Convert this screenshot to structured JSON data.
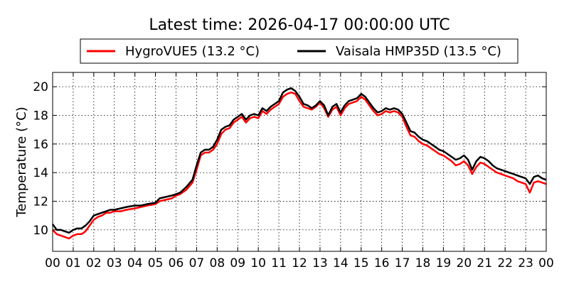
{
  "chart_data": {
    "type": "line",
    "title": "Latest time: 2026-04-17 00:00:00 UTC",
    "xlabel": "",
    "ylabel": "Temperature (°C)",
    "xlim": [
      0,
      24
    ],
    "ylim": [
      8.5,
      21
    ],
    "grid": true,
    "legend_position": "top",
    "x_tick_values": [
      0,
      1,
      2,
      3,
      4,
      5,
      6,
      7,
      8,
      9,
      10,
      11,
      12,
      13,
      14,
      15,
      16,
      17,
      18,
      19,
      20,
      21,
      22,
      23,
      24
    ],
    "x_tick_labels": [
      "00",
      "01",
      "02",
      "03",
      "04",
      "05",
      "06",
      "07",
      "08",
      "09",
      "10",
      "11",
      "12",
      "13",
      "14",
      "15",
      "16",
      "17",
      "18",
      "19",
      "20",
      "21",
      "22",
      "23",
      "00"
    ],
    "y_ticks": [
      10,
      12,
      14,
      16,
      18,
      20
    ],
    "series": [
      {
        "name": "HygroVUE5 (13.2 °C)",
        "color": "#ff0000",
        "points": [
          [
            0.0,
            10.0
          ],
          [
            0.2,
            9.7
          ],
          [
            0.4,
            9.6
          ],
          [
            0.6,
            9.5
          ],
          [
            0.8,
            9.4
          ],
          [
            1.0,
            9.6
          ],
          [
            1.2,
            9.7
          ],
          [
            1.4,
            9.7
          ],
          [
            1.6,
            9.9
          ],
          [
            1.8,
            10.3
          ],
          [
            2.0,
            10.7
          ],
          [
            2.2,
            10.9
          ],
          [
            2.4,
            11.0
          ],
          [
            2.6,
            11.2
          ],
          [
            2.8,
            11.2
          ],
          [
            3.0,
            11.3
          ],
          [
            3.3,
            11.3
          ],
          [
            3.6,
            11.4
          ],
          [
            4.0,
            11.5
          ],
          [
            4.3,
            11.6
          ],
          [
            4.6,
            11.7
          ],
          [
            5.0,
            11.8
          ],
          [
            5.2,
            12.0
          ],
          [
            5.5,
            12.1
          ],
          [
            5.8,
            12.2
          ],
          [
            6.0,
            12.4
          ],
          [
            6.2,
            12.5
          ],
          [
            6.5,
            12.8
          ],
          [
            6.8,
            13.3
          ],
          [
            7.0,
            14.2
          ],
          [
            7.2,
            15.2
          ],
          [
            7.4,
            15.4
          ],
          [
            7.6,
            15.4
          ],
          [
            7.8,
            15.6
          ],
          [
            8.0,
            16.0
          ],
          [
            8.2,
            16.7
          ],
          [
            8.4,
            17.0
          ],
          [
            8.6,
            17.1
          ],
          [
            8.8,
            17.5
          ],
          [
            9.0,
            17.7
          ],
          [
            9.2,
            17.9
          ],
          [
            9.4,
            17.5
          ],
          [
            9.6,
            17.8
          ],
          [
            9.8,
            17.9
          ],
          [
            10.0,
            17.8
          ],
          [
            10.2,
            18.3
          ],
          [
            10.4,
            18.1
          ],
          [
            10.6,
            18.4
          ],
          [
            10.8,
            18.6
          ],
          [
            11.0,
            18.8
          ],
          [
            11.2,
            19.3
          ],
          [
            11.4,
            19.5
          ],
          [
            11.6,
            19.6
          ],
          [
            11.8,
            19.5
          ],
          [
            12.0,
            19.0
          ],
          [
            12.2,
            18.6
          ],
          [
            12.4,
            18.5
          ],
          [
            12.6,
            18.4
          ],
          [
            12.8,
            18.6
          ],
          [
            13.0,
            18.9
          ],
          [
            13.2,
            18.5
          ],
          [
            13.4,
            17.9
          ],
          [
            13.6,
            18.4
          ],
          [
            13.8,
            18.6
          ],
          [
            14.0,
            18.0
          ],
          [
            14.2,
            18.5
          ],
          [
            14.4,
            18.8
          ],
          [
            14.6,
            18.9
          ],
          [
            14.8,
            19.0
          ],
          [
            15.0,
            19.3
          ],
          [
            15.2,
            19.1
          ],
          [
            15.4,
            18.7
          ],
          [
            15.6,
            18.3
          ],
          [
            15.8,
            18.0
          ],
          [
            16.0,
            18.1
          ],
          [
            16.2,
            18.3
          ],
          [
            16.4,
            18.2
          ],
          [
            16.6,
            18.3
          ],
          [
            16.8,
            18.2
          ],
          [
            17.0,
            17.9
          ],
          [
            17.2,
            17.2
          ],
          [
            17.4,
            16.6
          ],
          [
            17.6,
            16.5
          ],
          [
            17.8,
            16.2
          ],
          [
            18.0,
            16.0
          ],
          [
            18.2,
            15.9
          ],
          [
            18.4,
            15.7
          ],
          [
            18.6,
            15.5
          ],
          [
            18.8,
            15.3
          ],
          [
            19.0,
            15.2
          ],
          [
            19.2,
            15.0
          ],
          [
            19.4,
            14.8
          ],
          [
            19.6,
            14.5
          ],
          [
            19.8,
            14.6
          ],
          [
            20.0,
            14.8
          ],
          [
            20.2,
            14.5
          ],
          [
            20.4,
            13.9
          ],
          [
            20.6,
            14.4
          ],
          [
            20.8,
            14.7
          ],
          [
            21.0,
            14.6
          ],
          [
            21.2,
            14.4
          ],
          [
            21.4,
            14.2
          ],
          [
            21.6,
            14.0
          ],
          [
            21.8,
            13.9
          ],
          [
            22.0,
            13.8
          ],
          [
            22.2,
            13.7
          ],
          [
            22.4,
            13.6
          ],
          [
            22.6,
            13.4
          ],
          [
            22.8,
            13.3
          ],
          [
            23.0,
            13.2
          ],
          [
            23.2,
            12.6
          ],
          [
            23.4,
            13.3
          ],
          [
            23.6,
            13.4
          ],
          [
            23.8,
            13.3
          ],
          [
            24.0,
            13.2
          ]
        ]
      },
      {
        "name": "Vaisala HMP35D (13.5 °C)",
        "color": "#000000",
        "points": [
          [
            0.0,
            10.4
          ],
          [
            0.2,
            10.0
          ],
          [
            0.4,
            10.0
          ],
          [
            0.6,
            9.9
          ],
          [
            0.8,
            9.8
          ],
          [
            1.0,
            10.0
          ],
          [
            1.2,
            10.1
          ],
          [
            1.4,
            10.1
          ],
          [
            1.6,
            10.3
          ],
          [
            1.8,
            10.6
          ],
          [
            2.0,
            11.0
          ],
          [
            2.2,
            11.1
          ],
          [
            2.4,
            11.2
          ],
          [
            2.6,
            11.3
          ],
          [
            2.8,
            11.4
          ],
          [
            3.0,
            11.4
          ],
          [
            3.3,
            11.5
          ],
          [
            3.6,
            11.6
          ],
          [
            4.0,
            11.7
          ],
          [
            4.3,
            11.7
          ],
          [
            4.6,
            11.8
          ],
          [
            5.0,
            11.9
          ],
          [
            5.2,
            12.2
          ],
          [
            5.5,
            12.3
          ],
          [
            5.8,
            12.4
          ],
          [
            6.0,
            12.5
          ],
          [
            6.2,
            12.6
          ],
          [
            6.5,
            13.0
          ],
          [
            6.8,
            13.5
          ],
          [
            7.0,
            14.5
          ],
          [
            7.2,
            15.4
          ],
          [
            7.4,
            15.6
          ],
          [
            7.6,
            15.6
          ],
          [
            7.8,
            15.8
          ],
          [
            8.0,
            16.3
          ],
          [
            8.2,
            17.0
          ],
          [
            8.4,
            17.2
          ],
          [
            8.6,
            17.3
          ],
          [
            8.8,
            17.7
          ],
          [
            9.0,
            17.9
          ],
          [
            9.2,
            18.1
          ],
          [
            9.4,
            17.7
          ],
          [
            9.6,
            18.0
          ],
          [
            9.8,
            18.1
          ],
          [
            10.0,
            18.0
          ],
          [
            10.2,
            18.5
          ],
          [
            10.4,
            18.3
          ],
          [
            10.6,
            18.6
          ],
          [
            10.8,
            18.8
          ],
          [
            11.0,
            19.0
          ],
          [
            11.2,
            19.6
          ],
          [
            11.4,
            19.8
          ],
          [
            11.6,
            19.9
          ],
          [
            11.8,
            19.7
          ],
          [
            12.0,
            19.3
          ],
          [
            12.2,
            18.8
          ],
          [
            12.4,
            18.7
          ],
          [
            12.6,
            18.5
          ],
          [
            12.8,
            18.7
          ],
          [
            13.0,
            19.0
          ],
          [
            13.2,
            18.7
          ],
          [
            13.4,
            18.0
          ],
          [
            13.6,
            18.6
          ],
          [
            13.8,
            18.8
          ],
          [
            14.0,
            18.2
          ],
          [
            14.2,
            18.7
          ],
          [
            14.4,
            19.0
          ],
          [
            14.6,
            19.1
          ],
          [
            14.8,
            19.2
          ],
          [
            15.0,
            19.5
          ],
          [
            15.2,
            19.3
          ],
          [
            15.4,
            18.9
          ],
          [
            15.6,
            18.5
          ],
          [
            15.8,
            18.2
          ],
          [
            16.0,
            18.3
          ],
          [
            16.2,
            18.5
          ],
          [
            16.4,
            18.4
          ],
          [
            16.6,
            18.5
          ],
          [
            16.8,
            18.4
          ],
          [
            17.0,
            18.1
          ],
          [
            17.2,
            17.5
          ],
          [
            17.4,
            16.9
          ],
          [
            17.6,
            16.8
          ],
          [
            17.8,
            16.5
          ],
          [
            18.0,
            16.3
          ],
          [
            18.2,
            16.2
          ],
          [
            18.4,
            16.0
          ],
          [
            18.6,
            15.8
          ],
          [
            18.8,
            15.6
          ],
          [
            19.0,
            15.5
          ],
          [
            19.2,
            15.3
          ],
          [
            19.4,
            15.1
          ],
          [
            19.6,
            14.9
          ],
          [
            19.8,
            15.0
          ],
          [
            20.0,
            15.2
          ],
          [
            20.2,
            14.9
          ],
          [
            20.4,
            14.2
          ],
          [
            20.6,
            14.8
          ],
          [
            20.8,
            15.1
          ],
          [
            21.0,
            15.0
          ],
          [
            21.2,
            14.8
          ],
          [
            21.4,
            14.5
          ],
          [
            21.6,
            14.3
          ],
          [
            21.8,
            14.2
          ],
          [
            22.0,
            14.1
          ],
          [
            22.2,
            14.0
          ],
          [
            22.4,
            13.9
          ],
          [
            22.6,
            13.8
          ],
          [
            22.8,
            13.7
          ],
          [
            23.0,
            13.6
          ],
          [
            23.2,
            13.2
          ],
          [
            23.4,
            13.7
          ],
          [
            23.6,
            13.8
          ],
          [
            23.8,
            13.6
          ],
          [
            24.0,
            13.5
          ]
        ]
      }
    ]
  }
}
